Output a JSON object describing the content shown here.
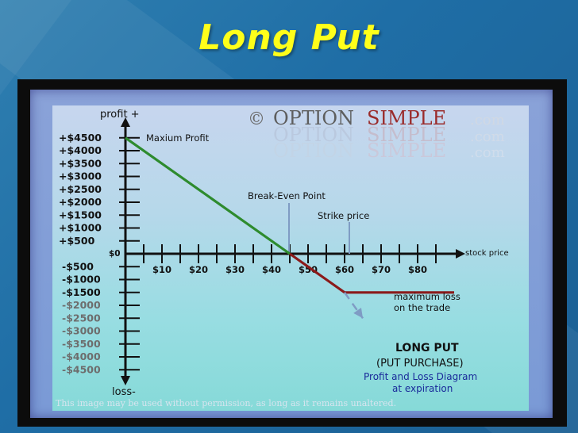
{
  "slide": {
    "title": "Long Put"
  },
  "watermark": {
    "copyright": "©",
    "brand_part1": "OPTION",
    "brand_part2": "SIMPLE",
    "brand_tld": ".com",
    "footer": "This image may be used without permission, as long as it remains unaltered."
  },
  "chart_data": {
    "type": "line",
    "ylabel_top": "profit +",
    "ylabel_bottom": "loss-",
    "xlabel": "stock price",
    "origin_label": "$0",
    "y_ticks_positive": [
      "+$4500",
      "+$4000",
      "+$3500",
      "+$3000",
      "+$2500",
      "+$2000",
      "+$1500",
      "+$1000",
      "+$500"
    ],
    "y_ticks_negative": [
      "-$500",
      "-$1000",
      "-$1500",
      "-$2000",
      "-$2500",
      "-$3000",
      "-$3500",
      "-$4000",
      "-$4500"
    ],
    "x_ticks": [
      "$10",
      "$20",
      "$30",
      "$40",
      "$50",
      "$60",
      "$70",
      "$80"
    ],
    "x_tick_values": [
      10,
      20,
      30,
      40,
      50,
      60,
      70,
      80
    ],
    "xlim": [
      0,
      90
    ],
    "ylim": [
      -4500,
      4500
    ],
    "series": [
      {
        "color": "#2e8b2e",
        "points": [
          [
            0,
            4500
          ],
          [
            45,
            0
          ]
        ]
      },
      {
        "color": "#8b1a1a",
        "points": [
          [
            45,
            0
          ],
          [
            50,
            -500
          ],
          [
            55,
            -1000
          ],
          [
            60,
            -1500
          ],
          [
            90,
            -1500
          ]
        ]
      },
      {
        "color": "#7f9cc4",
        "dashed": true,
        "points": [
          [
            60,
            -1500
          ],
          [
            65,
            -2500
          ]
        ]
      }
    ],
    "annotations": {
      "max_profit": "Maxium Profit",
      "break_even": "Break-Even Point",
      "strike_price": "Strike price",
      "max_loss_line1": "maximum loss",
      "max_loss_line2": "on the trade"
    },
    "legend_box": {
      "line1": "LONG PUT",
      "line2": "(PUT PURCHASE)",
      "line3": "Profit and Loss Diagram",
      "line4": "at expiration"
    },
    "colors": {
      "profit_line": "#2e8b2e",
      "loss_line": "#8b1a1a",
      "annotation_blue": "#1a2a9a"
    }
  }
}
